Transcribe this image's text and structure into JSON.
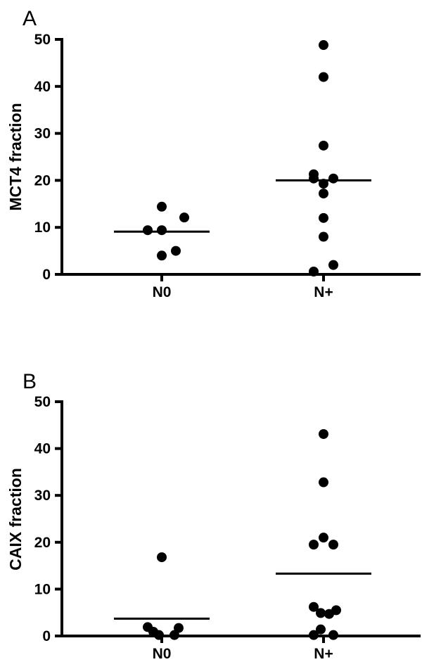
{
  "chart_data": [
    {
      "type": "scatter",
      "panel_label": "A",
      "ylabel": "MCT4 fraction",
      "xlabel": "",
      "categories": [
        "N0",
        "N+"
      ],
      "ylim": [
        0,
        50
      ],
      "yticks": [
        0,
        10,
        20,
        30,
        40,
        50
      ],
      "series": [
        {
          "category": "N0",
          "values": [
            14.4,
            12.1,
            9.4,
            9.4,
            5.0,
            4.0
          ],
          "median": 9.1
        },
        {
          "category": "N+",
          "values": [
            48.8,
            42.0,
            27.4,
            21.3,
            20.4,
            20.4,
            19.3,
            17.2,
            12.0,
            8.0,
            2.0,
            0.6
          ],
          "median": 20.0
        }
      ]
    },
    {
      "type": "scatter",
      "panel_label": "B",
      "ylabel": "CAIX fraction",
      "xlabel": "",
      "categories": [
        "N0",
        "N+"
      ],
      "ylim": [
        0,
        50
      ],
      "yticks": [
        0,
        10,
        20,
        30,
        40,
        50
      ],
      "series": [
        {
          "category": "N0",
          "values": [
            16.8,
            1.9,
            1.7,
            0.9,
            0.2,
            0.2
          ],
          "median": 3.7
        },
        {
          "category": "N+",
          "values": [
            43.1,
            32.8,
            21.0,
            19.5,
            19.5,
            6.2,
            5.5,
            4.9,
            4.7,
            1.4,
            0.2,
            0.2
          ],
          "median": 13.3
        }
      ]
    }
  ]
}
